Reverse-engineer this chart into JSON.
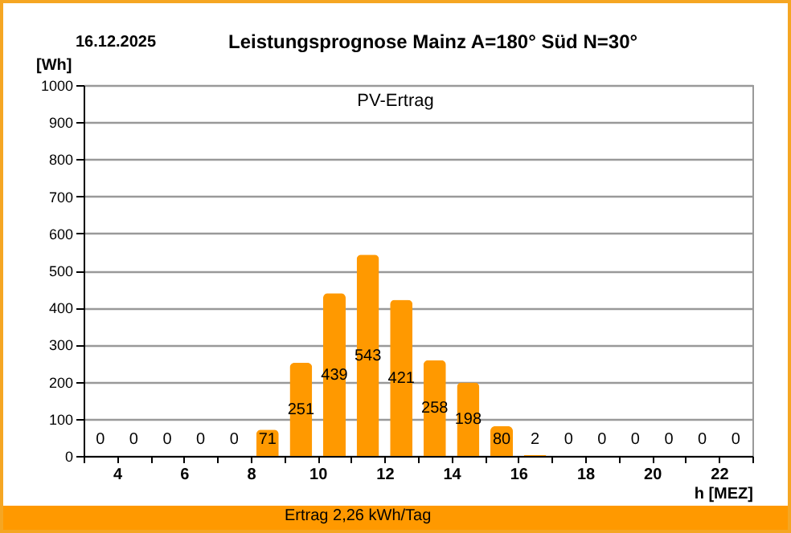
{
  "chart_data": {
    "type": "bar",
    "title": "Leistungsprognose Mainz A=180° Süd N=30°",
    "xlabel": "h [MEZ]",
    "ylabel": "[Wh]",
    "annotations": [
      "16.12.2025",
      "PV-Ertrag",
      "Ertrag 2,26 kWh/Tag"
    ],
    "x": [
      3.5,
      4.5,
      5.5,
      6.5,
      7.5,
      8.5,
      9.5,
      10.5,
      11.5,
      12.5,
      13.5,
      14.5,
      15.5,
      16.5,
      17.5,
      18.5,
      19.5,
      20.5,
      21.5,
      22.5
    ],
    "values": [
      0,
      0,
      0,
      0,
      0,
      71,
      251,
      439,
      543,
      421,
      258,
      198,
      80,
      2,
      0,
      0,
      0,
      0,
      0,
      0
    ],
    "color": "#ff9900",
    "data_labels": true,
    "xlim": [
      3,
      23
    ],
    "xticks": [
      {
        "value": 3,
        "label": null
      },
      4,
      {
        "value": 5,
        "label": null
      },
      6,
      {
        "value": 7,
        "label": null
      },
      8,
      {
        "value": 9,
        "label": null
      },
      10,
      {
        "value": 11,
        "label": null
      },
      12,
      {
        "value": 13,
        "label": null
      },
      14,
      {
        "value": 15,
        "label": null
      },
      16,
      {
        "value": 17,
        "label": null
      },
      18,
      {
        "value": 19,
        "label": null
      },
      20,
      {
        "value": 21,
        "label": null
      },
      22,
      {
        "value": 23,
        "label": null
      }
    ],
    "ylim": [
      0,
      1000
    ],
    "yticks": [
      0,
      100,
      200,
      300,
      400,
      500,
      600,
      700,
      800,
      900,
      1000
    ],
    "grid": "y"
  }
}
